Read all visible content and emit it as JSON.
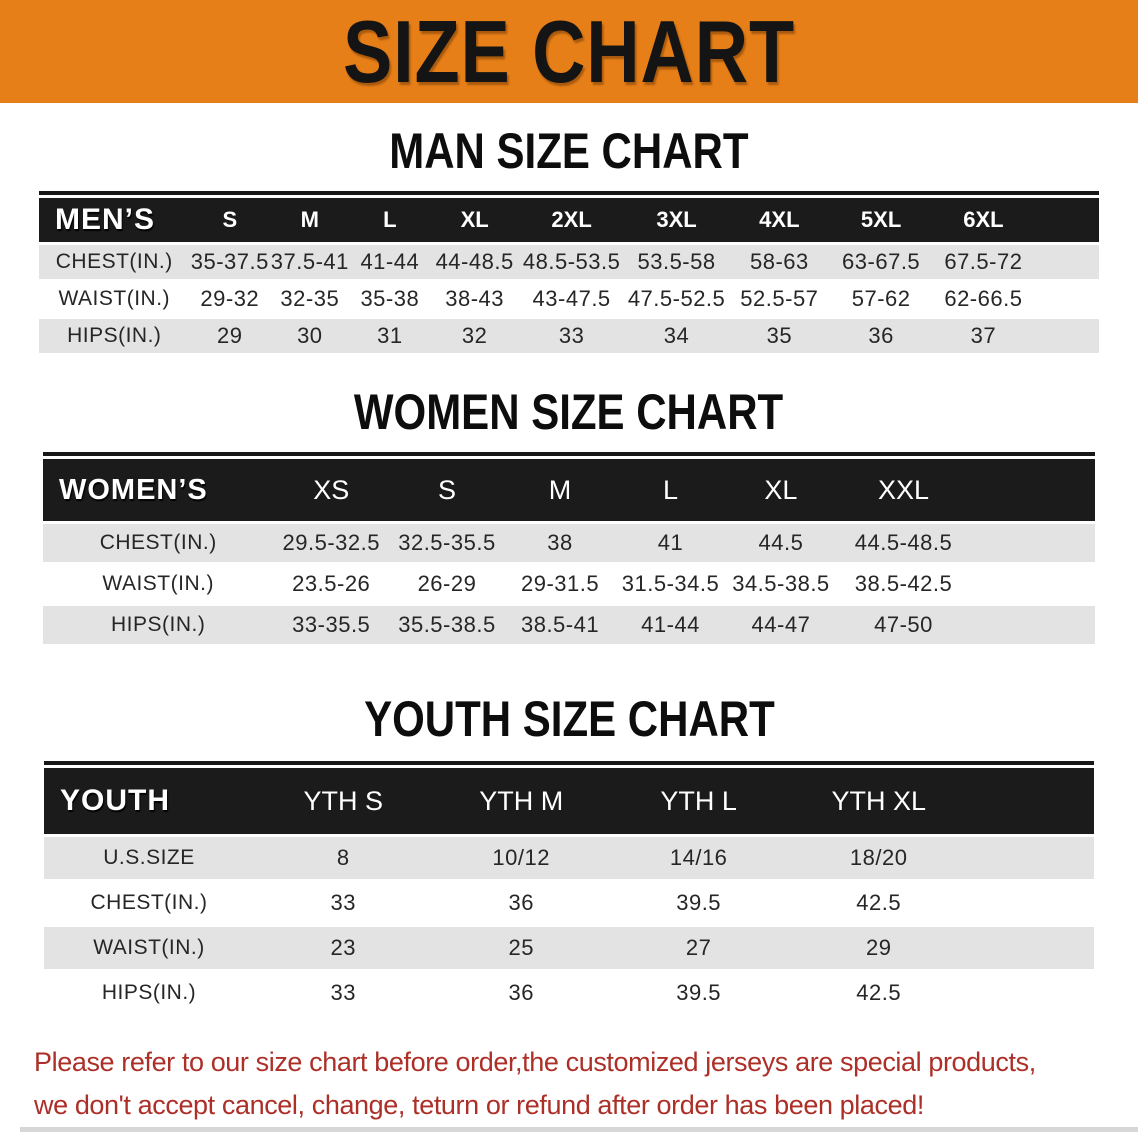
{
  "banner": {
    "title": "SIZE CHART"
  },
  "colors": {
    "banner_bg": "#e77f18",
    "banner_text": "#141414",
    "table_header_bg": "#1b1b1b",
    "table_header_text": "#ffffff",
    "row_shade": "#e3e3e3",
    "row_plain": "#ffffff",
    "note_text": "#ac2f28"
  },
  "men": {
    "heading": "MAN SIZE CHART",
    "table": {
      "corner_label": "MEN’S",
      "sizes": [
        "S",
        "M",
        "L",
        "XL",
        "2XL",
        "3XL",
        "4XL",
        "5XL",
        "6XL"
      ],
      "rows": [
        {
          "label": "CHEST(IN.)",
          "values": [
            "35-37.5",
            "37.5-41",
            "41-44",
            "44-48.5",
            "48.5-53.5",
            "53.5-58",
            "58-63",
            "63-67.5",
            "67.5-72"
          ]
        },
        {
          "label": "WAIST(IN.)",
          "values": [
            "29-32",
            "32-35",
            "35-38",
            "38-43",
            "43-47.5",
            "47.5-52.5",
            "52.5-57",
            "57-62",
            "62-66.5"
          ]
        },
        {
          "label": "HIPS(IN.)",
          "values": [
            "29",
            "30",
            "31",
            "32",
            "33",
            "34",
            "35",
            "36",
            "37"
          ]
        }
      ]
    }
  },
  "women": {
    "heading": "WOMEN SIZE CHART",
    "table": {
      "corner_label": "WOMEN’S",
      "sizes": [
        "XS",
        "S",
        "M",
        "L",
        "XL",
        "XXL"
      ],
      "rows": [
        {
          "label": "CHEST(IN.)",
          "values": [
            "29.5-32.5",
            "32.5-35.5",
            "38",
            "41",
            "44.5",
            "44.5-48.5"
          ]
        },
        {
          "label": "WAIST(IN.)",
          "values": [
            "23.5-26",
            "26-29",
            "29-31.5",
            "31.5-34.5",
            "34.5-38.5",
            "38.5-42.5"
          ]
        },
        {
          "label": "HIPS(IN.)",
          "values": [
            "33-35.5",
            "35.5-38.5",
            "38.5-41",
            "41-44",
            "44-47",
            "47-50"
          ]
        }
      ]
    }
  },
  "youth": {
    "heading": "YOUTH SIZE CHART",
    "table": {
      "corner_label": "YOUTH",
      "sizes": [
        "YTH S",
        "YTH M",
        "YTH L",
        "YTH XL"
      ],
      "rows": [
        {
          "label": "U.S.SIZE",
          "values": [
            "8",
            "10/12",
            "14/16",
            "18/20"
          ]
        },
        {
          "label": "CHEST(IN.)",
          "values": [
            "33",
            "36",
            "39.5",
            "42.5"
          ]
        },
        {
          "label": "WAIST(IN.)",
          "values": [
            "23",
            "25",
            "27",
            "29"
          ]
        },
        {
          "label": "HIPS(IN.)",
          "values": [
            "33",
            "36",
            "39.5",
            "42.5"
          ]
        }
      ]
    }
  },
  "note": {
    "lines": [
      "Please refer to our size chart before order,the customized jerseys are special products,",
      "we don't accept cancel, change, teturn or refund after order has been placed!"
    ]
  }
}
